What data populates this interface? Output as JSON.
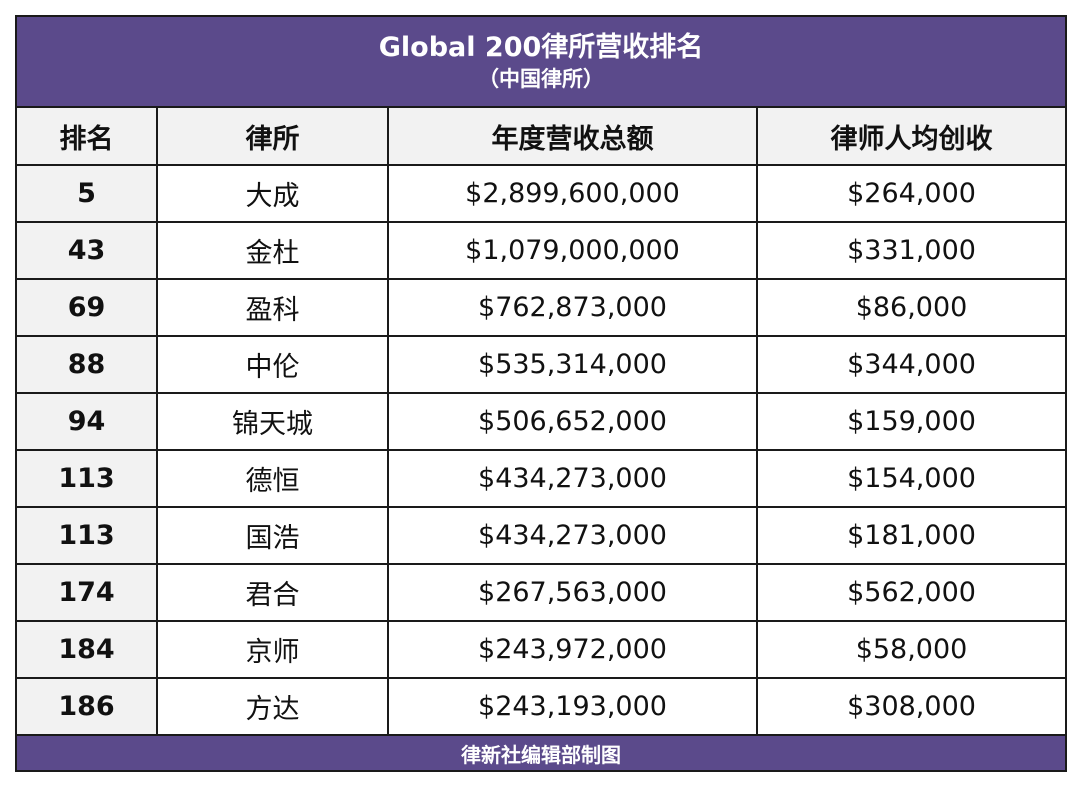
{
  "title": {
    "main": "Global 200律所营收排名",
    "sub": "（中国律所）"
  },
  "columns": [
    "排名",
    "律所",
    "年度营收总额",
    "律师人均创收"
  ],
  "rows": [
    {
      "rank": "5",
      "firm": "大成",
      "revenue": "$2,899,600,000",
      "per_lawyer": "$264,000"
    },
    {
      "rank": "43",
      "firm": "金杜",
      "revenue": "$1,079,000,000",
      "per_lawyer": "$331,000"
    },
    {
      "rank": "69",
      "firm": "盈科",
      "revenue": "$762,873,000",
      "per_lawyer": "$86,000"
    },
    {
      "rank": "88",
      "firm": "中伦",
      "revenue": "$535,314,000",
      "per_lawyer": "$344,000"
    },
    {
      "rank": "94",
      "firm": "锦天城",
      "revenue": "$506,652,000",
      "per_lawyer": "$159,000"
    },
    {
      "rank": "113",
      "firm": "德恒",
      "revenue": "$434,273,000",
      "per_lawyer": "$154,000"
    },
    {
      "rank": "113",
      "firm": "国浩",
      "revenue": "$434,273,000",
      "per_lawyer": "$181,000"
    },
    {
      "rank": "174",
      "firm": "君合",
      "revenue": "$267,563,000",
      "per_lawyer": "$562,000"
    },
    {
      "rank": "184",
      "firm": "京师",
      "revenue": "$243,972,000",
      "per_lawyer": "$58,000"
    },
    {
      "rank": "186",
      "firm": "方达",
      "revenue": "$243,193,000",
      "per_lawyer": "$308,000"
    }
  ],
  "footer": "律新社编辑部制图",
  "colors": {
    "header_band": "#5b4a8b",
    "rank_column_bg": "#f2f2f2",
    "border": "#1a1a1a"
  }
}
